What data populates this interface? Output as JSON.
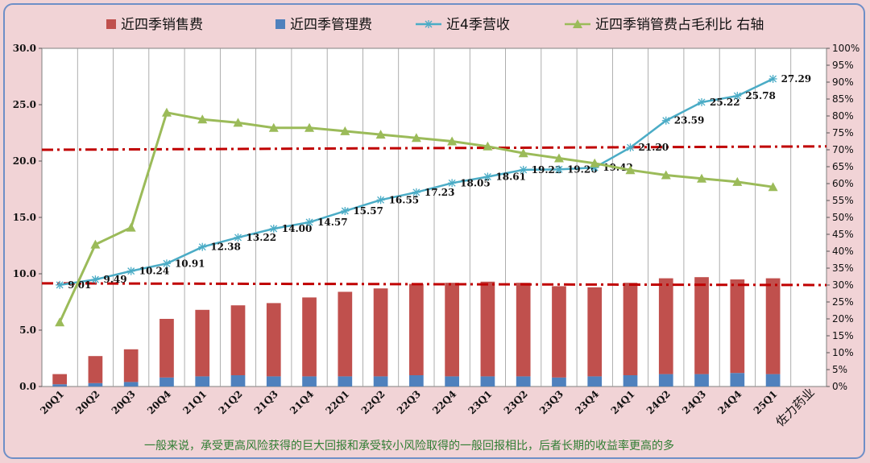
{
  "chart_data": {
    "type": "bar",
    "categories": [
      "20Q1",
      "20Q2",
      "20Q3",
      "20Q4",
      "21Q1",
      "21Q2",
      "21Q3",
      "21Q4",
      "22Q1",
      "22Q2",
      "22Q3",
      "22Q4",
      "23Q1",
      "23Q2",
      "23Q3",
      "23Q4",
      "24Q1",
      "24Q2",
      "24Q3",
      "24Q4",
      "25Q1"
    ],
    "extra_category": "佐力药业",
    "series": [
      {
        "name": "近四季销售费",
        "kind": "bar",
        "color": "#c0504d",
        "values": [
          0.9,
          2.4,
          2.9,
          5.2,
          5.9,
          6.2,
          6.5,
          7.0,
          7.5,
          7.8,
          8.1,
          8.3,
          8.4,
          8.3,
          8.1,
          7.9,
          8.2,
          8.5,
          8.6,
          8.3,
          8.5
        ]
      },
      {
        "name": "近四季管理费",
        "kind": "bar",
        "color": "#4f81bd",
        "values": [
          0.2,
          0.3,
          0.4,
          0.8,
          0.9,
          1.0,
          0.9,
          0.9,
          0.9,
          0.9,
          1.0,
          0.9,
          0.9,
          0.9,
          0.8,
          0.9,
          1.0,
          1.1,
          1.1,
          1.2,
          1.1
        ]
      },
      {
        "name": "近4季营收",
        "kind": "line",
        "color": "#4bacc6",
        "values": [
          9.01,
          9.49,
          10.24,
          10.91,
          12.38,
          13.22,
          14.0,
          14.57,
          15.57,
          16.55,
          17.23,
          18.05,
          18.61,
          19.22,
          19.26,
          19.42,
          21.2,
          23.59,
          25.22,
          25.78,
          27.29
        ],
        "labels": [
          "9.01",
          "9.49",
          "10.24",
          "10.91",
          "12.38",
          "13.22",
          "14.00",
          "14.57",
          "15.57",
          "16.55",
          "17.23",
          "18.05",
          "18.61",
          "19.22",
          "19.26",
          "19.42",
          "21.20",
          "23.59",
          "25.22",
          "25.78",
          "27.29"
        ]
      },
      {
        "name": "近四季销管费占毛利比 右轴",
        "kind": "line",
        "axis": "right",
        "color": "#9bbb59",
        "values": [
          19,
          42,
          47,
          81,
          79,
          78,
          76.5,
          76.5,
          75.5,
          74.5,
          73.5,
          72.5,
          71,
          69,
          67.5,
          66,
          64,
          62.5,
          61.5,
          60.5,
          59
        ]
      }
    ],
    "y_left": {
      "min": 0,
      "max": 30,
      "ticks": [
        "0.0",
        "5.0",
        "10.0",
        "15.0",
        "20.0",
        "25.0",
        "30.0"
      ]
    },
    "y_right": {
      "min": 0,
      "max": 100,
      "ticks": [
        "0%",
        "5%",
        "10%",
        "15%",
        "20%",
        "25%",
        "30%",
        "35%",
        "40%",
        "45%",
        "50%",
        "55%",
        "60%",
        "65%",
        "70%",
        "75%",
        "80%",
        "85%",
        "90%",
        "95%",
        "100%"
      ]
    },
    "reference_lines": [
      {
        "axis": "right",
        "value_start": 70,
        "value_end": 71,
        "color": "#c00000"
      },
      {
        "axis": "right",
        "value_start": 30.5,
        "value_end": 30,
        "color": "#c00000"
      }
    ],
    "note": "一般来说，承受更高风险获得的巨大回报和承受较小风险取得的一般回报相比，后者长期的收益率更高的多",
    "legend_position": "top"
  }
}
